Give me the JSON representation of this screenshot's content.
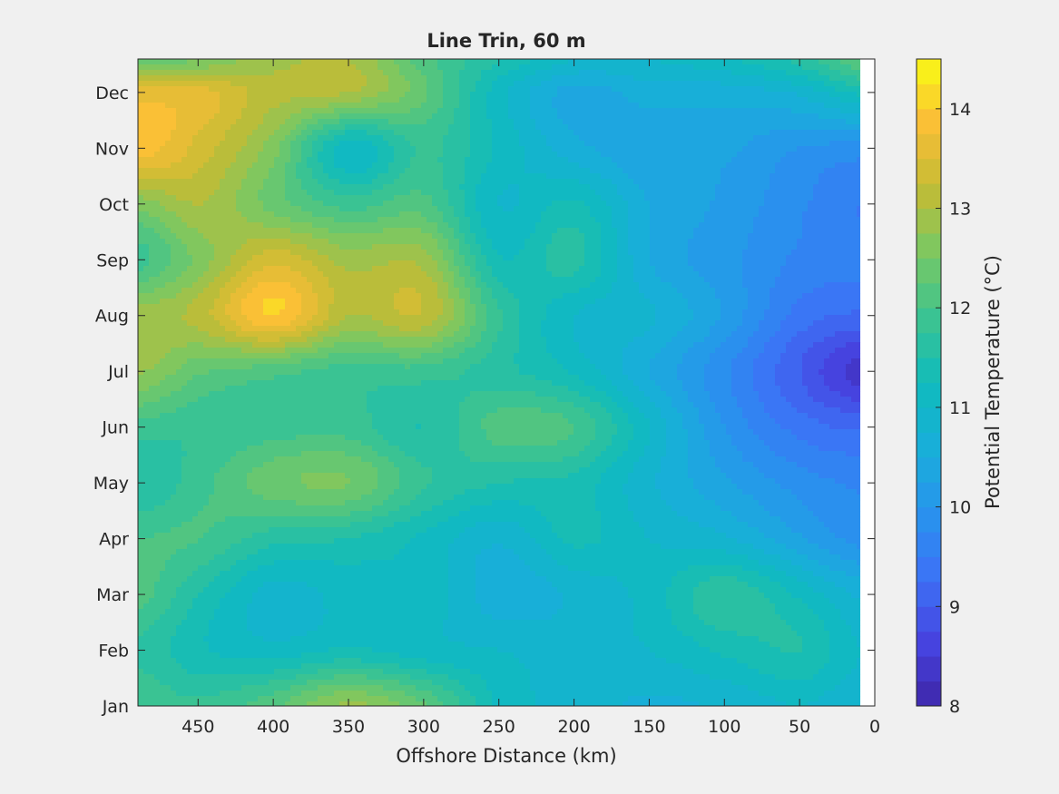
{
  "chart_data": {
    "type": "heatmap",
    "style": "filled contour",
    "title": "Line Trin, 60 m",
    "xlabel": "Offshore Distance (km)",
    "xlim": [
      490,
      0
    ],
    "x_reversed": true,
    "x_ticks": [
      450,
      400,
      350,
      300,
      250,
      200,
      150,
      100,
      50,
      0
    ],
    "y_ticks": [
      "Jan",
      "Feb",
      "Mar",
      "Apr",
      "May",
      "Jun",
      "Jul",
      "Aug",
      "Sep",
      "Oct",
      "Nov",
      "Dec"
    ],
    "ylim_months": [
      1,
      12.6
    ],
    "data_extent_x": [
      490,
      10
    ],
    "colorbar": {
      "label": "Potential Temperature (°C)",
      "range": [
        8,
        14.5
      ],
      "level_step": 0.25,
      "ticks": [
        8,
        9,
        10,
        11,
        12,
        13,
        14
      ],
      "colormap": "parula"
    },
    "distance_km": [
      490,
      450,
      400,
      350,
      300,
      250,
      200,
      150,
      100,
      50,
      10
    ],
    "months": [
      1,
      2,
      3,
      4,
      5,
      6,
      7,
      8,
      9,
      10,
      11,
      12,
      12.6
    ],
    "temperature_c": [
      [
        12.0,
        11.8,
        12.2,
        12.8,
        12.3,
        11.2,
        10.9,
        10.7,
        10.8,
        11.0,
        10.8
      ],
      [
        11.7,
        11.3,
        11.1,
        11.3,
        11.1,
        11.0,
        10.9,
        11.0,
        11.3,
        11.5,
        11.0
      ],
      [
        12.1,
        11.5,
        10.9,
        11.1,
        11.2,
        10.6,
        10.8,
        11.1,
        11.7,
        11.2,
        10.7
      ],
      [
        12.0,
        12.0,
        11.6,
        11.5,
        11.2,
        10.8,
        11.3,
        11.0,
        10.8,
        10.3,
        9.9
      ],
      [
        11.5,
        11.9,
        12.4,
        12.5,
        11.8,
        11.5,
        11.4,
        10.8,
        10.3,
        9.9,
        9.7
      ],
      [
        11.9,
        11.8,
        11.9,
        11.9,
        11.5,
        12.1,
        12.0,
        11.0,
        10.0,
        9.4,
        9.2
      ],
      [
        12.8,
        12.3,
        12.1,
        11.9,
        11.9,
        11.6,
        11.2,
        10.5,
        9.8,
        9.0,
        8.4
      ],
      [
        12.9,
        13.1,
        14.0,
        13.0,
        13.2,
        11.8,
        11.0,
        10.8,
        10.2,
        9.4,
        9.2
      ],
      [
        11.9,
        12.6,
        13.4,
        12.9,
        12.9,
        11.3,
        11.6,
        10.5,
        10.1,
        9.7,
        9.6
      ],
      [
        12.6,
        13.0,
        12.4,
        11.9,
        12.1,
        11.0,
        11.3,
        10.5,
        10.2,
        9.8,
        9.5
      ],
      [
        13.9,
        13.4,
        12.6,
        11.1,
        11.8,
        11.2,
        10.6,
        10.3,
        10.3,
        10.0,
        9.9
      ],
      [
        13.6,
        13.6,
        13.1,
        13.0,
        12.3,
        11.1,
        10.4,
        10.6,
        10.6,
        10.8,
        11.3
      ],
      [
        12.3,
        12.5,
        12.9,
        13.0,
        12.1,
        11.5,
        11.0,
        11.0,
        11.2,
        11.6,
        12.2
      ]
    ]
  }
}
